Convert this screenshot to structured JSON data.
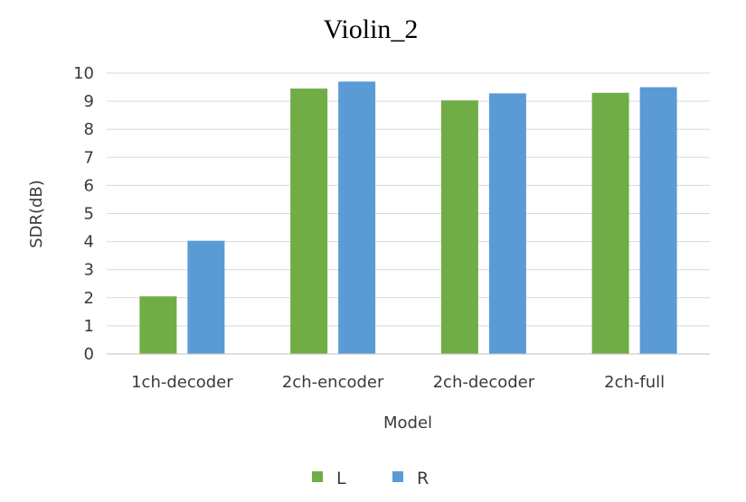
{
  "chart_data": {
    "type": "bar",
    "title": "Violin_2",
    "xlabel": "Model",
    "ylabel": "SDR(dB)",
    "categories": [
      "1ch-decoder",
      "2ch-encoder",
      "2ch-decoder",
      "2ch-full"
    ],
    "series": [
      {
        "name": "L",
        "color": "#70ad47",
        "values": [
          2.05,
          9.45,
          9.03,
          9.3
        ]
      },
      {
        "name": "R",
        "color": "#5b9bd5",
        "values": [
          4.03,
          9.7,
          9.28,
          9.5
        ]
      }
    ],
    "ylim": [
      0,
      10
    ],
    "yticks": [
      "0",
      "1",
      "2",
      "3",
      "4",
      "5",
      "6",
      "7",
      "8",
      "9",
      "10"
    ],
    "grid": true,
    "legend_position": "bottom",
    "gridline_color": "#d9d9d9",
    "axis_color": "#bfbfbf"
  }
}
